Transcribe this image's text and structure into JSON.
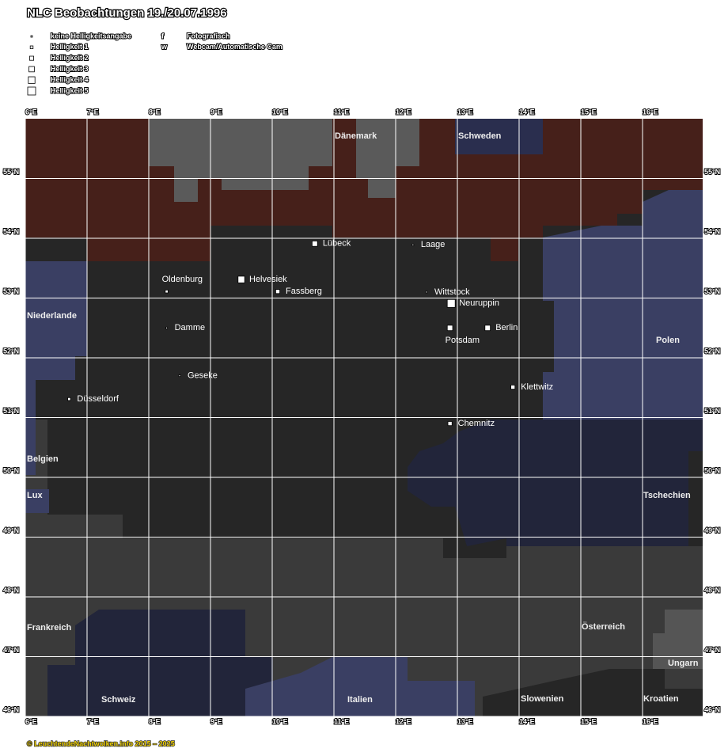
{
  "title": "NLC Beobachtungen 19./20.07.1996",
  "legend": {
    "brightness": [
      "keine Helligkeitsangabe",
      "Helligkeit 1",
      "Helligkeit 2",
      "Helligkeit 3",
      "Helligkeit 4",
      "Helligkeit 5"
    ],
    "methods": [
      {
        "symbol": "f",
        "label": "Fotografisch"
      },
      {
        "symbol": "w",
        "label": "Webcam/Automatische Cam"
      }
    ]
  },
  "lon_ticks": [
    {
      "value": 6,
      "label": "6°E"
    },
    {
      "value": 7,
      "label": "7°E"
    },
    {
      "value": 8,
      "label": "8°E"
    },
    {
      "value": 9,
      "label": "9°E"
    },
    {
      "value": 10,
      "label": "10°E"
    },
    {
      "value": 11,
      "label": "11°E"
    },
    {
      "value": 12,
      "label": "12°E"
    },
    {
      "value": 13,
      "label": "13°E"
    },
    {
      "value": 14,
      "label": "14°E"
    },
    {
      "value": 15,
      "label": "15°E"
    },
    {
      "value": 16,
      "label": "16°E"
    }
  ],
  "lat_ticks": [
    {
      "value": 55,
      "label": "55°N"
    },
    {
      "value": 54,
      "label": "54°N"
    },
    {
      "value": 53,
      "label": "53°N"
    },
    {
      "value": 52,
      "label": "52°N"
    },
    {
      "value": 51,
      "label": "51°N"
    },
    {
      "value": 50,
      "label": "50°N"
    },
    {
      "value": 49,
      "label": "49°N"
    },
    {
      "value": 48,
      "label": "48°N"
    },
    {
      "value": 47,
      "label": "47°N"
    },
    {
      "value": 46,
      "label": "46°N"
    }
  ],
  "countries": [
    "Dänemark",
    "Schweden",
    "Niederlande",
    "Polen",
    "Belgien",
    "Lux",
    "Tschechien",
    "Frankreich",
    "Österreich",
    "Ungarn",
    "Schweiz",
    "Italien",
    "Slowenien",
    "Kroatien"
  ],
  "stations": [
    {
      "name": "Lübeck",
      "lon": 10.69,
      "lat": 53.91,
      "brightness": 3
    },
    {
      "name": "Laage",
      "lon": 12.28,
      "lat": 53.89,
      "brightness": 0
    },
    {
      "name": "Oldenburg",
      "lon": 8.29,
      "lat": 53.11,
      "brightness": 1
    },
    {
      "name": "Helvesiek",
      "lon": 9.5,
      "lat": 53.31,
      "brightness": 4
    },
    {
      "name": "Fassberg",
      "lon": 10.09,
      "lat": 53.11,
      "brightness": 2
    },
    {
      "name": "Wittstock",
      "lon": 12.5,
      "lat": 53.1,
      "brightness": 0
    },
    {
      "name": "Neuruppin",
      "lon": 12.9,
      "lat": 52.91,
      "brightness": 5
    },
    {
      "name": "Potsdam",
      "lon": 12.88,
      "lat": 52.5,
      "brightness": 3
    },
    {
      "name": "Berlin",
      "lon": 13.49,
      "lat": 52.5,
      "brightness": 3
    },
    {
      "name": "Damme",
      "lon": 8.29,
      "lat": 52.5,
      "brightness": 0
    },
    {
      "name": "Geseke",
      "lon": 8.5,
      "lat": 51.7,
      "brightness": 0
    },
    {
      "name": "Düsseldorf",
      "lon": 6.71,
      "lat": 51.31,
      "brightness": 1
    },
    {
      "name": "Klettwitz",
      "lon": 13.9,
      "lat": 51.51,
      "brightness": 2
    },
    {
      "name": "Chemnitz",
      "lon": 12.88,
      "lat": 50.9,
      "brightness": 2
    }
  ],
  "footer": "© LeuchtendeNachtwolken.info 2015 – 2025"
}
